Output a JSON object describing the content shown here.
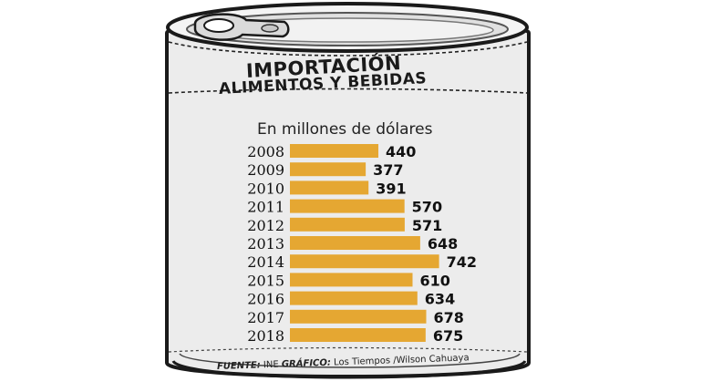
{
  "title_line1": "IMPORTACIÓN",
  "title_line2": "ALIMENTOS Y BEBIDAS",
  "subtitle": "En millones de dólares",
  "source_label": "FUENTE:",
  "source_value": "INE",
  "graphic_label": "GRÁFICO:",
  "graphic_value": "Los Tiempos /Wilson Cahuaya",
  "colors": {
    "bar": "#E5A732",
    "can_body": "#EBEBEB",
    "outline": "#1a1a1a"
  },
  "chart_data": {
    "type": "bar",
    "orientation": "horizontal",
    "title": "IMPORTACIÓN ALIMENTOS Y BEBIDAS",
    "subtitle": "En millones de dólares",
    "categories": [
      "2008",
      "2009",
      "2010",
      "2011",
      "2012",
      "2013",
      "2014",
      "2015",
      "2016",
      "2017",
      "2018"
    ],
    "values": [
      440,
      377,
      391,
      570,
      571,
      648,
      742,
      610,
      634,
      678,
      675
    ],
    "value_labels": [
      "440",
      "377",
      "391",
      "570",
      "571",
      "648",
      "742",
      "610",
      "634",
      "678",
      "675"
    ],
    "grid": false,
    "legend": "none"
  }
}
